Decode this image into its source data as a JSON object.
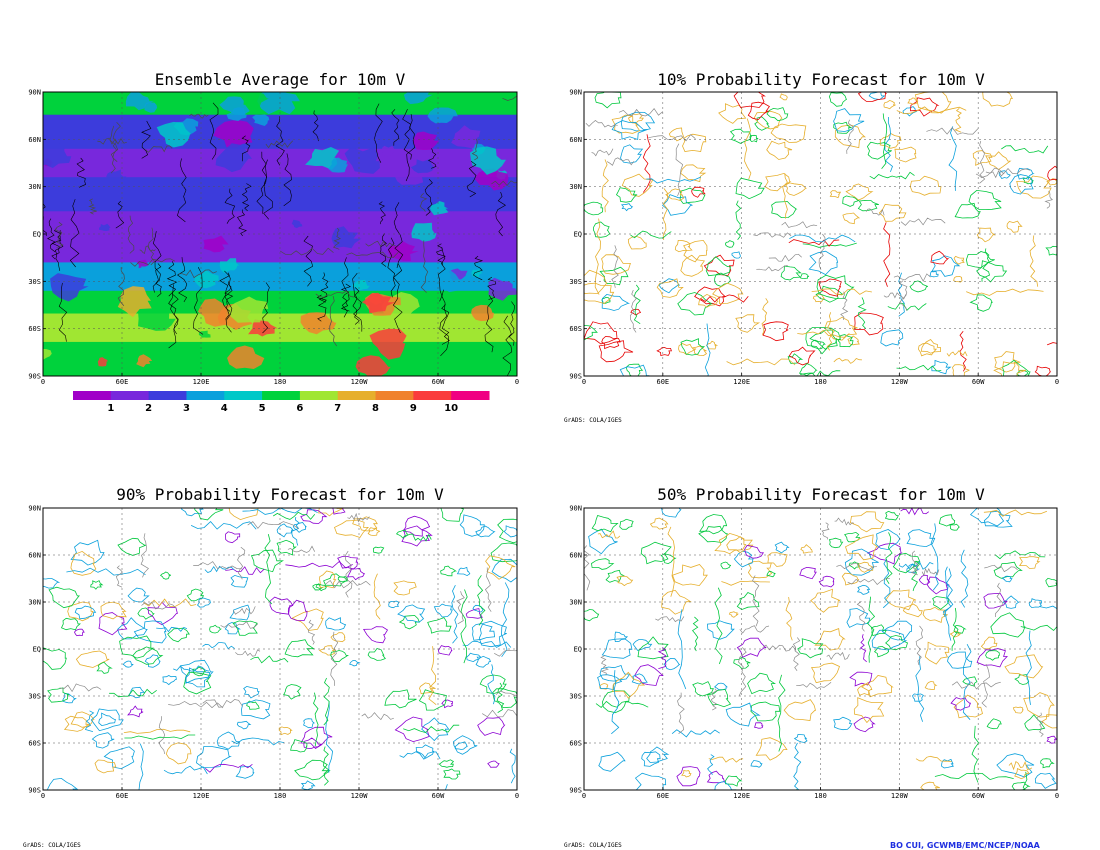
{
  "panels": [
    {
      "id": "tl",
      "title": "Ensemble Average for 10m V"
    },
    {
      "id": "tr",
      "title": "10% Probability Forecast for 10m V"
    },
    {
      "id": "bl",
      "title": "90% Probability Forecast for 10m V"
    },
    {
      "id": "br",
      "title": "50% Probability Forecast for 10m V"
    }
  ],
  "axes": {
    "lat_labels": [
      "90N",
      "60N",
      "30N",
      "EQ",
      "30S",
      "60S",
      "90S"
    ],
    "lon_labels": [
      "0",
      "60E",
      "120E",
      "180",
      "120W",
      "60W",
      "0"
    ]
  },
  "colorbar": {
    "labels": [
      "1",
      "2",
      "3",
      "4",
      "5",
      "6",
      "7",
      "8",
      "9",
      "10"
    ],
    "colors": [
      "#a000c8",
      "#7828dc",
      "#3c3cdc",
      "#0aa0dc",
      "#00c8c8",
      "#00d23c",
      "#a0e632",
      "#e6af2d",
      "#f0822d",
      "#fa3c3c",
      "#f00082"
    ]
  },
  "credits": {
    "grads": "GrADS: COLA/IGES",
    "author": "BO CUI, GCWMB/EMC/NCEP/NOAA"
  },
  "contour_colors": {
    "coast": "#8a8a8a",
    "orange": "#e6af2d",
    "green": "#00c83c",
    "cyan": "#0aa0dc",
    "red": "#e60000",
    "purple": "#8c00d2"
  }
}
